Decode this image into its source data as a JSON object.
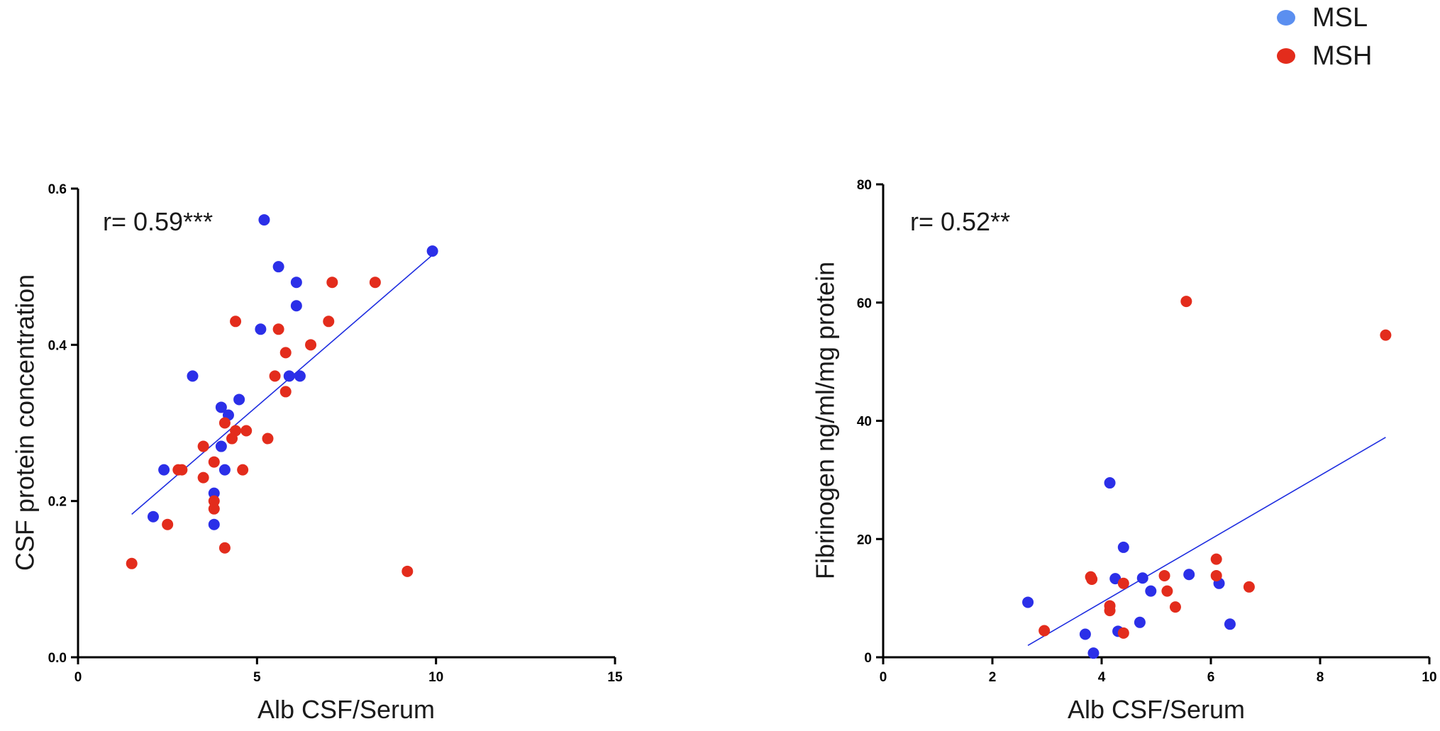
{
  "legend": {
    "items": [
      {
        "label": "MSL",
        "color": "#5b8ff0"
      },
      {
        "label": "MSH",
        "color": "#e32c1c"
      }
    ]
  },
  "colors": {
    "MSL": "#2b2fe8",
    "MSH": "#e32c1c",
    "fit": "#1f2ee0",
    "axis": "#000000"
  },
  "chart_data": [
    {
      "type": "scatter",
      "annotation": "r= 0.59***",
      "xlabel": "Alb CSF/Serum",
      "ylabel": "CSF protein concentration",
      "xlim": [
        0,
        15
      ],
      "ylim": [
        0,
        0.6
      ],
      "xticks": [
        0,
        5,
        10,
        15
      ],
      "yticks": [
        0.0,
        0.2,
        0.4,
        0.6
      ],
      "ytick_labels": [
        "0.0",
        "0.2",
        "0.4",
        "0.6"
      ],
      "xtick_labels": [
        "0",
        "5",
        "10",
        "15"
      ],
      "fit_line": {
        "x": [
          1.5,
          9.9
        ],
        "y": [
          0.183,
          0.515
        ]
      },
      "series": [
        {
          "name": "MSL",
          "points": [
            [
              5.2,
              0.56
            ],
            [
              9.9,
              0.52
            ],
            [
              5.6,
              0.5
            ],
            [
              6.1,
              0.48
            ],
            [
              6.1,
              0.45
            ],
            [
              5.1,
              0.42
            ],
            [
              3.2,
              0.36
            ],
            [
              5.9,
              0.36
            ],
            [
              6.2,
              0.36
            ],
            [
              4.5,
              0.33
            ],
            [
              4.0,
              0.32
            ],
            [
              4.2,
              0.31
            ],
            [
              4.0,
              0.27
            ],
            [
              2.4,
              0.24
            ],
            [
              4.1,
              0.24
            ],
            [
              3.8,
              0.21
            ],
            [
              2.1,
              0.18
            ],
            [
              3.8,
              0.17
            ]
          ]
        },
        {
          "name": "MSH",
          "points": [
            [
              7.1,
              0.48
            ],
            [
              8.3,
              0.48
            ],
            [
              4.4,
              0.43
            ],
            [
              7.0,
              0.43
            ],
            [
              5.6,
              0.42
            ],
            [
              6.5,
              0.4
            ],
            [
              5.8,
              0.39
            ],
            [
              5.5,
              0.36
            ],
            [
              5.8,
              0.34
            ],
            [
              4.1,
              0.3
            ],
            [
              4.4,
              0.29
            ],
            [
              4.7,
              0.29
            ],
            [
              4.3,
              0.28
            ],
            [
              5.3,
              0.28
            ],
            [
              3.5,
              0.27
            ],
            [
              3.8,
              0.25
            ],
            [
              2.8,
              0.24
            ],
            [
              2.9,
              0.24
            ],
            [
              4.6,
              0.24
            ],
            [
              3.5,
              0.23
            ],
            [
              3.8,
              0.2
            ],
            [
              3.8,
              0.19
            ],
            [
              2.5,
              0.17
            ],
            [
              4.1,
              0.14
            ],
            [
              1.5,
              0.12
            ],
            [
              9.2,
              0.11
            ]
          ]
        }
      ]
    },
    {
      "type": "scatter",
      "annotation": "r= 0.52**",
      "xlabel": "Alb CSF/Serum",
      "ylabel": "Fibrinogen ng/ml/mg protein",
      "xlim": [
        0,
        10
      ],
      "ylim": [
        0,
        80
      ],
      "xticks": [
        0,
        2,
        4,
        6,
        8,
        10
      ],
      "yticks": [
        0,
        20,
        40,
        60,
        80
      ],
      "xtick_labels": [
        "0",
        "2",
        "4",
        "6",
        "8",
        "10"
      ],
      "ytick_labels": [
        "0",
        "20",
        "40",
        "60",
        "80"
      ],
      "fit_line": {
        "x": [
          2.65,
          9.2
        ],
        "y": [
          2.0,
          37.2
        ]
      },
      "series": [
        {
          "name": "MSL",
          "points": [
            [
              4.15,
              29.5
            ],
            [
              4.4,
              18.6
            ],
            [
              5.6,
              14.0
            ],
            [
              4.75,
              13.4
            ],
            [
              4.25,
              13.3
            ],
            [
              6.15,
              12.5
            ],
            [
              4.9,
              11.2
            ],
            [
              2.65,
              9.3
            ],
            [
              4.7,
              5.9
            ],
            [
              6.35,
              5.6
            ],
            [
              4.3,
              4.4
            ],
            [
              3.7,
              3.9
            ],
            [
              3.85,
              0.7
            ]
          ]
        },
        {
          "name": "MSH",
          "points": [
            [
              5.55,
              60.2
            ],
            [
              9.2,
              54.5
            ],
            [
              6.1,
              16.6
            ],
            [
              3.8,
              13.6
            ],
            [
              3.82,
              13.2
            ],
            [
              5.15,
              13.8
            ],
            [
              6.1,
              13.8
            ],
            [
              4.4,
              12.5
            ],
            [
              6.7,
              11.9
            ],
            [
              5.2,
              11.2
            ],
            [
              4.15,
              8.7
            ],
            [
              5.35,
              8.5
            ],
            [
              4.15,
              7.9
            ],
            [
              2.95,
              4.5
            ],
            [
              4.4,
              4.1
            ]
          ]
        }
      ]
    }
  ]
}
